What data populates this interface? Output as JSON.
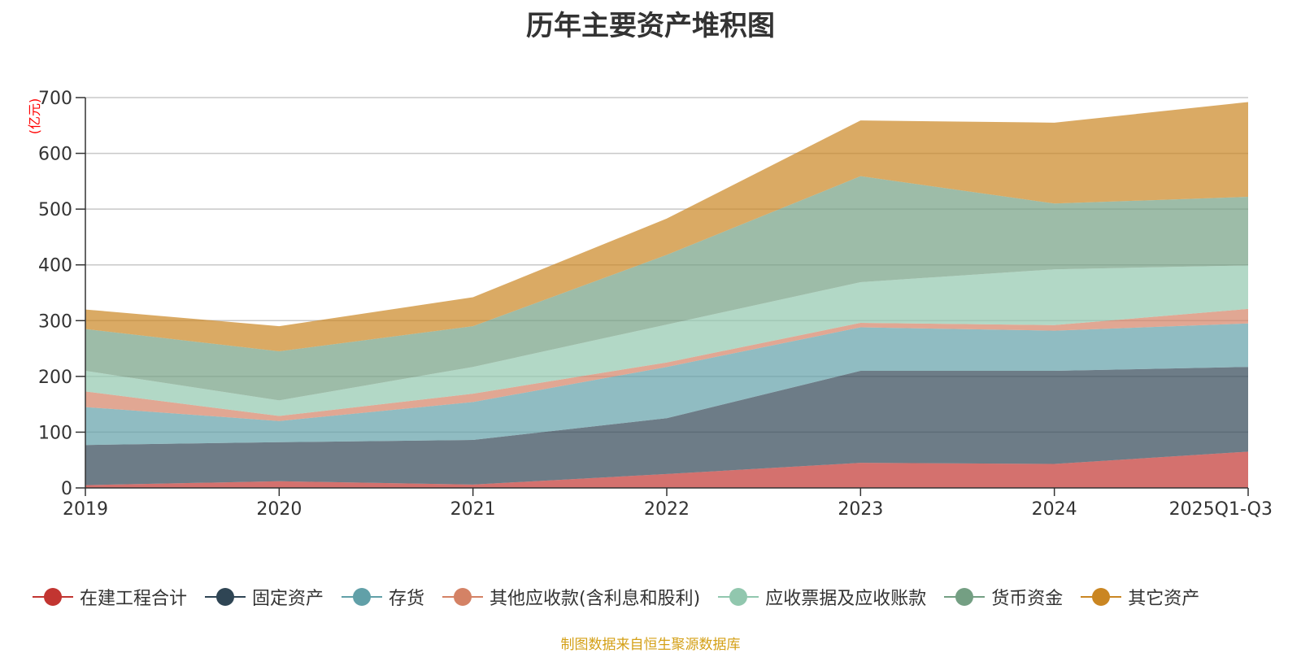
{
  "chart_data": {
    "type": "area",
    "stacked": true,
    "title": "历年主要资产堆积图",
    "unit": "(亿元)",
    "categories": [
      "2019",
      "2020",
      "2021",
      "2022",
      "2023",
      "2024",
      "2025Q1-Q3"
    ],
    "ylim": [
      0,
      700
    ],
    "yticks": [
      0,
      100,
      200,
      300,
      400,
      500,
      600,
      700
    ],
    "grid": true,
    "legend_position": "bottom",
    "series": [
      {
        "name": "在建工程合计",
        "color": "#c23531",
        "values": [
          5,
          12,
          6,
          25,
          45,
          43,
          65
        ]
      },
      {
        "name": "固定资产",
        "color": "#2f4554",
        "values": [
          72,
          70,
          80,
          100,
          165,
          167,
          152
        ]
      },
      {
        "name": "存货",
        "color": "#61a0a8",
        "values": [
          68,
          38,
          68,
          92,
          78,
          72,
          78
        ]
      },
      {
        "name": "其他应收款(含利息和股利)",
        "color": "#d48265",
        "values": [
          28,
          9,
          15,
          8,
          8,
          10,
          26
        ]
      },
      {
        "name": "应收票据及应收账款",
        "color": "#91c7ae",
        "values": [
          37,
          28,
          48,
          68,
          73,
          100,
          78
        ]
      },
      {
        "name": "货币资金",
        "color": "#749f83",
        "values": [
          75,
          88,
          73,
          125,
          190,
          118,
          123
        ]
      },
      {
        "name": "其它资产",
        "color": "#ca8622",
        "values": [
          35,
          45,
          52,
          65,
          100,
          145,
          170
        ]
      }
    ]
  },
  "footer": "制图数据来自恒生聚源数据库"
}
